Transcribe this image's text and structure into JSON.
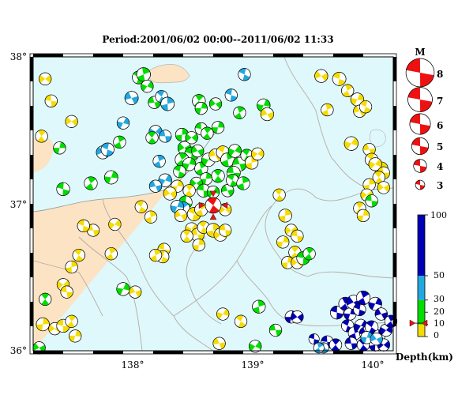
{
  "title": "Period:2001/06/02 00:00--2011/06/02 11:33",
  "map": {
    "lon_range": [
      137.2,
      140.2
    ],
    "lat_range": [
      36.0,
      38.0
    ],
    "lat_ticks": [
      {
        "v": 38,
        "label": "38°"
      },
      {
        "v": 37,
        "label": "37°"
      },
      {
        "v": 36,
        "label": "36°"
      }
    ],
    "lon_ticks": [
      {
        "v": 138,
        "label": "138°"
      },
      {
        "v": 139,
        "label": "139°"
      },
      {
        "v": 140,
        "label": "140°"
      }
    ],
    "colors": {
      "sea": "#dff8fb",
      "land": "#fbe3c4",
      "border": "#b5aca4",
      "frame": "#000000"
    }
  },
  "magnitude_legend": {
    "title": "M",
    "items": [
      {
        "label": "8",
        "m": 8
      },
      {
        "label": "7",
        "m": 7
      },
      {
        "label": "6",
        "m": 6
      },
      {
        "label": "5",
        "m": 5
      },
      {
        "label": "4",
        "m": 4
      },
      {
        "label": "3",
        "m": 3
      }
    ]
  },
  "depth_scale": {
    "label": "Depth(km)",
    "ticks": [
      {
        "v": 100,
        "label": "100"
      },
      {
        "v": 50,
        "label": "50"
      },
      {
        "v": 30,
        "label": "30"
      },
      {
        "v": 20,
        "label": "20"
      },
      {
        "v": 10,
        "label": "10"
      },
      {
        "v": 0,
        "label": "0"
      }
    ],
    "bands": [
      {
        "from": 0,
        "to": 10,
        "color": "#f5dc00"
      },
      {
        "from": 10,
        "to": 30,
        "color": "#00dd00"
      },
      {
        "from": 30,
        "to": 50,
        "color": "#22a8e0"
      },
      {
        "from": 50,
        "to": 100,
        "color": "#0000b5"
      }
    ]
  },
  "main_event": {
    "lon": 138.7,
    "lat": 36.99,
    "m": 6.6,
    "color": "#ee1111"
  },
  "events": [
    {
      "lon": 137.3,
      "lat": 37.85,
      "m": 4.0,
      "c": "y"
    },
    {
      "lon": 137.35,
      "lat": 37.7,
      "m": 4.0,
      "c": "y"
    },
    {
      "lon": 137.27,
      "lat": 37.46,
      "m": 4.0,
      "c": "y"
    },
    {
      "lon": 137.42,
      "lat": 37.38,
      "m": 4.0,
      "c": "g"
    },
    {
      "lon": 137.52,
      "lat": 37.56,
      "m": 4.0,
      "c": "b"
    },
    {
      "lon": 137.45,
      "lat": 37.1,
      "m": 4.2,
      "c": "g"
    },
    {
      "lon": 137.68,
      "lat": 37.14,
      "m": 4.2,
      "c": "g"
    },
    {
      "lon": 137.85,
      "lat": 37.18,
      "m": 4.3,
      "c": "g"
    },
    {
      "lon": 137.78,
      "lat": 37.35,
      "m": 4.2,
      "c": "c"
    },
    {
      "lon": 137.82,
      "lat": 37.37,
      "m": 4.2,
      "c": "c"
    },
    {
      "lon": 137.92,
      "lat": 37.42,
      "m": 4.0,
      "c": "g"
    },
    {
      "lon": 137.95,
      "lat": 37.55,
      "m": 4.0,
      "c": "c"
    },
    {
      "lon": 138.02,
      "lat": 37.72,
      "m": 4.3,
      "c": "c"
    },
    {
      "lon": 138.08,
      "lat": 37.86,
      "m": 4.2,
      "c": "g"
    },
    {
      "lon": 138.12,
      "lat": 37.88,
      "m": 4.4,
      "c": "g"
    },
    {
      "lon": 138.15,
      "lat": 37.8,
      "m": 4.0,
      "c": "g"
    },
    {
      "lon": 138.21,
      "lat": 37.69,
      "m": 4.0,
      "c": "g"
    },
    {
      "lon": 138.27,
      "lat": 37.73,
      "m": 4.0,
      "c": "c"
    },
    {
      "lon": 138.32,
      "lat": 37.68,
      "m": 4.3,
      "c": "c"
    },
    {
      "lon": 138.22,
      "lat": 37.49,
      "m": 4.2,
      "c": "c"
    },
    {
      "lon": 138.3,
      "lat": 37.46,
      "m": 4.0,
      "c": "c"
    },
    {
      "lon": 138.19,
      "lat": 37.45,
      "m": 4.0,
      "c": "g"
    },
    {
      "lon": 138.44,
      "lat": 37.47,
      "m": 4.2,
      "c": "g"
    },
    {
      "lon": 138.52,
      "lat": 37.45,
      "m": 4.0,
      "c": "g"
    },
    {
      "lon": 138.6,
      "lat": 37.51,
      "m": 4.0,
      "c": "g"
    },
    {
      "lon": 138.65,
      "lat": 37.48,
      "m": 4.0,
      "c": "g"
    },
    {
      "lon": 138.74,
      "lat": 37.52,
      "m": 4.0,
      "c": "g"
    },
    {
      "lon": 138.46,
      "lat": 37.38,
      "m": 4.2,
      "c": "g"
    },
    {
      "lon": 138.52,
      "lat": 37.34,
      "m": 4.4,
      "c": "g"
    },
    {
      "lon": 138.44,
      "lat": 37.3,
      "m": 4.4,
      "c": "g"
    },
    {
      "lon": 138.5,
      "lat": 37.27,
      "m": 4.2,
      "c": "g"
    },
    {
      "lon": 138.57,
      "lat": 37.36,
      "m": 4.0,
      "c": "g"
    },
    {
      "lon": 138.42,
      "lat": 37.22,
      "m": 4.0,
      "c": "g"
    },
    {
      "lon": 138.6,
      "lat": 37.24,
      "m": 4.2,
      "c": "g"
    },
    {
      "lon": 138.66,
      "lat": 37.3,
      "m": 4.3,
      "c": "g"
    },
    {
      "lon": 138.72,
      "lat": 37.33,
      "m": 4.2,
      "c": "y"
    },
    {
      "lon": 138.78,
      "lat": 37.35,
      "m": 4.2,
      "c": "y"
    },
    {
      "lon": 138.82,
      "lat": 37.3,
      "m": 4.4,
      "c": "g"
    },
    {
      "lon": 138.88,
      "lat": 37.36,
      "m": 4.2,
      "c": "g"
    },
    {
      "lon": 138.92,
      "lat": 37.27,
      "m": 4.4,
      "c": "g"
    },
    {
      "lon": 138.98,
      "lat": 37.33,
      "m": 4.0,
      "c": "g"
    },
    {
      "lon": 139.02,
      "lat": 37.28,
      "m": 4.2,
      "c": "y"
    },
    {
      "lon": 139.07,
      "lat": 37.34,
      "m": 4.0,
      "c": "y"
    },
    {
      "lon": 138.87,
      "lat": 37.21,
      "m": 4.3,
      "c": "g"
    },
    {
      "lon": 138.74,
      "lat": 37.19,
      "m": 4.2,
      "c": "g"
    },
    {
      "lon": 138.64,
      "lat": 37.17,
      "m": 4.0,
      "c": "g"
    },
    {
      "lon": 138.56,
      "lat": 37.14,
      "m": 4.0,
      "c": "g"
    },
    {
      "lon": 138.62,
      "lat": 37.09,
      "m": 4.2,
      "c": "g"
    },
    {
      "lon": 138.5,
      "lat": 37.09,
      "m": 4.0,
      "c": "y"
    },
    {
      "lon": 138.4,
      "lat": 37.12,
      "m": 4.0,
      "c": "y"
    },
    {
      "lon": 138.34,
      "lat": 37.07,
      "m": 4.2,
      "c": "y"
    },
    {
      "lon": 138.47,
      "lat": 37.01,
      "m": 4.2,
      "c": "g"
    },
    {
      "lon": 138.45,
      "lat": 36.97,
      "m": 4.2,
      "c": "c"
    },
    {
      "lon": 138.4,
      "lat": 36.98,
      "m": 4.2,
      "c": "c"
    },
    {
      "lon": 138.43,
      "lat": 36.92,
      "m": 4.0,
      "c": "y"
    },
    {
      "lon": 138.54,
      "lat": 36.93,
      "m": 4.3,
      "c": "y"
    },
    {
      "lon": 138.6,
      "lat": 36.96,
      "m": 4.2,
      "c": "y"
    },
    {
      "lon": 138.7,
      "lat": 37.08,
      "m": 4.0,
      "c": "g"
    },
    {
      "lon": 138.82,
      "lat": 37.09,
      "m": 4.0,
      "c": "g"
    },
    {
      "lon": 138.86,
      "lat": 37.16,
      "m": 4.0,
      "c": "g"
    },
    {
      "lon": 138.95,
      "lat": 37.14,
      "m": 4.2,
      "c": "g"
    },
    {
      "lon": 138.52,
      "lat": 36.83,
      "m": 4.0,
      "c": "y"
    },
    {
      "lon": 138.57,
      "lat": 36.79,
      "m": 4.2,
      "c": "y"
    },
    {
      "lon": 138.62,
      "lat": 36.84,
      "m": 4.0,
      "c": "y"
    },
    {
      "lon": 138.7,
      "lat": 36.82,
      "m": 4.4,
      "c": "y"
    },
    {
      "lon": 138.76,
      "lat": 36.79,
      "m": 4.2,
      "c": "y"
    },
    {
      "lon": 138.8,
      "lat": 36.82,
      "m": 4.0,
      "c": "y"
    },
    {
      "lon": 138.48,
      "lat": 36.78,
      "m": 4.0,
      "c": "y"
    },
    {
      "lon": 138.58,
      "lat": 36.72,
      "m": 4.0,
      "c": "y"
    },
    {
      "lon": 138.8,
      "lat": 36.96,
      "m": 4.0,
      "c": "y"
    },
    {
      "lon": 138.29,
      "lat": 36.69,
      "m": 4.0,
      "c": "y"
    },
    {
      "lon": 138.58,
      "lat": 37.7,
      "m": 4.2,
      "c": "g"
    },
    {
      "lon": 138.6,
      "lat": 37.65,
      "m": 4.0,
      "c": "g"
    },
    {
      "lon": 138.72,
      "lat": 37.68,
      "m": 4.0,
      "c": "g"
    },
    {
      "lon": 138.85,
      "lat": 37.74,
      "m": 4.0,
      "c": "c"
    },
    {
      "lon": 138.92,
      "lat": 37.62,
      "m": 4.0,
      "c": "g"
    },
    {
      "lon": 139.12,
      "lat": 37.67,
      "m": 4.2,
      "c": "g"
    },
    {
      "lon": 139.15,
      "lat": 37.61,
      "m": 4.2,
      "c": "y"
    },
    {
      "lon": 138.96,
      "lat": 37.88,
      "m": 4.0,
      "c": "c"
    },
    {
      "lon": 138.25,
      "lat": 37.29,
      "m": 4.0,
      "c": "c"
    },
    {
      "lon": 138.3,
      "lat": 37.16,
      "m": 4.2,
      "c": "c"
    },
    {
      "lon": 138.22,
      "lat": 37.12,
      "m": 4.0,
      "c": "c"
    },
    {
      "lon": 138.1,
      "lat": 36.98,
      "m": 4.0,
      "c": "y"
    },
    {
      "lon": 138.18,
      "lat": 36.91,
      "m": 4.0,
      "c": "y"
    },
    {
      "lon": 137.88,
      "lat": 36.86,
      "m": 4.0,
      "c": "y"
    },
    {
      "lon": 137.7,
      "lat": 36.82,
      "m": 4.0,
      "c": "y"
    },
    {
      "lon": 137.58,
      "lat": 36.65,
      "m": 4.0,
      "c": "y"
    },
    {
      "lon": 137.52,
      "lat": 36.57,
      "m": 4.0,
      "c": "y"
    },
    {
      "lon": 137.45,
      "lat": 36.45,
      "m": 4.0,
      "c": "y"
    },
    {
      "lon": 137.48,
      "lat": 36.4,
      "m": 4.0,
      "c": "y"
    },
    {
      "lon": 137.3,
      "lat": 36.35,
      "m": 4.0,
      "c": "g"
    },
    {
      "lon": 137.28,
      "lat": 36.18,
      "m": 4.2,
      "c": "y"
    },
    {
      "lon": 137.38,
      "lat": 36.15,
      "m": 4.0,
      "c": "y"
    },
    {
      "lon": 137.45,
      "lat": 36.17,
      "m": 4.2,
      "c": "y"
    },
    {
      "lon": 137.52,
      "lat": 36.2,
      "m": 4.0,
      "c": "y"
    },
    {
      "lon": 137.55,
      "lat": 36.1,
      "m": 4.0,
      "c": "y"
    },
    {
      "lon": 137.25,
      "lat": 36.02,
      "m": 4.0,
      "c": "g"
    },
    {
      "lon": 137.62,
      "lat": 36.85,
      "m": 4.0,
      "c": "y"
    },
    {
      "lon": 137.85,
      "lat": 36.66,
      "m": 4.0,
      "c": "y"
    },
    {
      "lon": 137.95,
      "lat": 36.42,
      "m": 4.2,
      "c": "g"
    },
    {
      "lon": 138.05,
      "lat": 36.4,
      "m": 4.0,
      "c": "y"
    },
    {
      "lon": 138.28,
      "lat": 36.64,
      "m": 4.0,
      "c": "y"
    },
    {
      "lon": 138.22,
      "lat": 36.65,
      "m": 4.0,
      "c": "y"
    },
    {
      "lon": 138.78,
      "lat": 36.25,
      "m": 4.0,
      "c": "y"
    },
    {
      "lon": 138.75,
      "lat": 36.05,
      "m": 4.0,
      "c": "y"
    },
    {
      "lon": 138.93,
      "lat": 36.2,
      "m": 4.0,
      "c": "y"
    },
    {
      "lon": 139.08,
      "lat": 36.3,
      "m": 4.2,
      "c": "g"
    },
    {
      "lon": 139.05,
      "lat": 36.03,
      "m": 4.0,
      "c": "g"
    },
    {
      "lon": 139.22,
      "lat": 36.14,
      "m": 4.0,
      "c": "g"
    },
    {
      "lon": 139.25,
      "lat": 37.06,
      "m": 4.0,
      "c": "y"
    },
    {
      "lon": 139.3,
      "lat": 36.92,
      "m": 4.2,
      "c": "y"
    },
    {
      "lon": 139.35,
      "lat": 36.82,
      "m": 4.0,
      "c": "y"
    },
    {
      "lon": 139.4,
      "lat": 36.78,
      "m": 4.0,
      "c": "y"
    },
    {
      "lon": 139.38,
      "lat": 36.67,
      "m": 4.0,
      "c": "y"
    },
    {
      "lon": 139.32,
      "lat": 36.6,
      "m": 4.0,
      "c": "y"
    },
    {
      "lon": 139.4,
      "lat": 36.6,
      "m": 4.0,
      "c": "y"
    },
    {
      "lon": 139.45,
      "lat": 36.63,
      "m": 4.2,
      "c": "g"
    },
    {
      "lon": 139.5,
      "lat": 36.66,
      "m": 4.0,
      "c": "g"
    },
    {
      "lon": 139.28,
      "lat": 36.74,
      "m": 4.0,
      "c": "y"
    },
    {
      "lon": 139.6,
      "lat": 37.87,
      "m": 4.2,
      "c": "y"
    },
    {
      "lon": 139.75,
      "lat": 37.85,
      "m": 4.3,
      "c": "y"
    },
    {
      "lon": 139.82,
      "lat": 37.77,
      "m": 4.0,
      "c": "y"
    },
    {
      "lon": 139.9,
      "lat": 37.71,
      "m": 4.2,
      "c": "y"
    },
    {
      "lon": 139.92,
      "lat": 37.63,
      "m": 4.0,
      "c": "y"
    },
    {
      "lon": 139.97,
      "lat": 37.66,
      "m": 4.0,
      "c": "y"
    },
    {
      "lon": 139.65,
      "lat": 37.64,
      "m": 4.0,
      "c": "y"
    },
    {
      "lon": 139.85,
      "lat": 37.41,
      "m": 4.4,
      "c": "y"
    },
    {
      "lon": 140.0,
      "lat": 37.37,
      "m": 4.0,
      "c": "y"
    },
    {
      "lon": 140.02,
      "lat": 37.3,
      "m": 4.2,
      "c": "y"
    },
    {
      "lon": 140.1,
      "lat": 37.24,
      "m": 4.3,
      "c": "y"
    },
    {
      "lon": 140.05,
      "lat": 37.27,
      "m": 4.2,
      "c": "y"
    },
    {
      "lon": 140.12,
      "lat": 37.21,
      "m": 4.0,
      "c": "y"
    },
    {
      "lon": 140.08,
      "lat": 37.18,
      "m": 4.0,
      "c": "y"
    },
    {
      "lon": 140.0,
      "lat": 37.13,
      "m": 4.0,
      "c": "y"
    },
    {
      "lon": 139.98,
      "lat": 37.06,
      "m": 4.0,
      "c": "y"
    },
    {
      "lon": 140.02,
      "lat": 37.02,
      "m": 4.0,
      "c": "g"
    },
    {
      "lon": 139.92,
      "lat": 36.97,
      "m": 4.0,
      "c": "y"
    },
    {
      "lon": 139.95,
      "lat": 36.92,
      "m": 4.0,
      "c": "y"
    },
    {
      "lon": 140.12,
      "lat": 37.11,
      "m": 4.0,
      "c": "y"
    },
    {
      "lon": 139.73,
      "lat": 36.26,
      "m": 4.2,
      "c": "d"
    },
    {
      "lon": 139.8,
      "lat": 36.32,
      "m": 4.2,
      "c": "d"
    },
    {
      "lon": 139.84,
      "lat": 36.25,
      "m": 4.0,
      "c": "d"
    },
    {
      "lon": 139.87,
      "lat": 36.33,
      "m": 4.5,
      "c": "d"
    },
    {
      "lon": 139.92,
      "lat": 36.28,
      "m": 4.0,
      "c": "d"
    },
    {
      "lon": 139.95,
      "lat": 36.36,
      "m": 4.4,
      "c": "d"
    },
    {
      "lon": 140.05,
      "lat": 36.32,
      "m": 4.2,
      "c": "d"
    },
    {
      "lon": 140.1,
      "lat": 36.25,
      "m": 4.0,
      "c": "d"
    },
    {
      "lon": 139.82,
      "lat": 36.17,
      "m": 4.0,
      "c": "d"
    },
    {
      "lon": 139.88,
      "lat": 36.12,
      "m": 4.2,
      "c": "d"
    },
    {
      "lon": 139.93,
      "lat": 36.17,
      "m": 4.2,
      "c": "d"
    },
    {
      "lon": 139.97,
      "lat": 36.12,
      "m": 4.0,
      "c": "d"
    },
    {
      "lon": 140.02,
      "lat": 36.16,
      "m": 4.2,
      "c": "d"
    },
    {
      "lon": 140.08,
      "lat": 36.1,
      "m": 4.0,
      "c": "d"
    },
    {
      "lon": 140.14,
      "lat": 36.14,
      "m": 4.0,
      "c": "d"
    },
    {
      "lon": 139.85,
      "lat": 36.05,
      "m": 4.0,
      "c": "d"
    },
    {
      "lon": 139.95,
      "lat": 36.04,
      "m": 4.0,
      "c": "d"
    },
    {
      "lon": 140.05,
      "lat": 36.04,
      "m": 4.0,
      "c": "d"
    },
    {
      "lon": 140.12,
      "lat": 36.04,
      "m": 4.0,
      "c": "d"
    },
    {
      "lon": 139.65,
      "lat": 36.06,
      "m": 4.0,
      "c": "d"
    },
    {
      "lon": 139.72,
      "lat": 36.04,
      "m": 4.0,
      "c": "d"
    },
    {
      "lon": 139.35,
      "lat": 36.23,
      "m": 4.0,
      "c": "d"
    },
    {
      "lon": 139.4,
      "lat": 36.23,
      "m": 4.0,
      "c": "d"
    },
    {
      "lon": 139.54,
      "lat": 36.08,
      "m": 3.5,
      "c": "d"
    },
    {
      "lon": 140.18,
      "lat": 36.2,
      "m": 4.0,
      "c": "d"
    },
    {
      "lon": 139.98,
      "lat": 36.09,
      "m": 4.0,
      "c": "c"
    },
    {
      "lon": 140.06,
      "lat": 36.08,
      "m": 4.0,
      "c": "c"
    },
    {
      "lon": 139.62,
      "lat": 36.02,
      "m": 3.5,
      "c": "c"
    },
    {
      "lon": 139.58,
      "lat": 36.02,
      "m": 3.5,
      "c": "c"
    }
  ]
}
